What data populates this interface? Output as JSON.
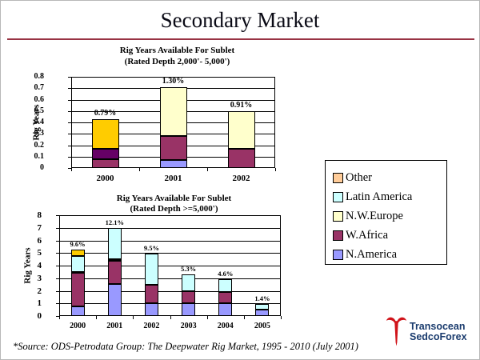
{
  "slide": {
    "title": "Secondary Market",
    "source_note": "*Source: ODS-Petrodata Group: The Deepwater Rig Market, 1995 - 2010 (July 2001)",
    "logo": {
      "line1": "Transocean",
      "line2": "SedcoForex"
    }
  },
  "colors": {
    "accent_rule": "#993344",
    "logo_red": "#D01319",
    "logo_navy": "#1B3C6E"
  },
  "legend": {
    "position": "right",
    "items": [
      {
        "label": "Other",
        "color": "#FFCC99"
      },
      {
        "label": "Latin America",
        "color": "#CCFFFF"
      },
      {
        "label": "N.W.Europe",
        "color": "#FFFFCC"
      },
      {
        "label": "W.Africa",
        "color": "#993366"
      },
      {
        "label": "N.America",
        "color": "#9999FF"
      }
    ]
  },
  "chart_data": [
    {
      "type": "bar",
      "stacked": true,
      "title": "Rig Years Available For Sublet",
      "subtitle": "(Rated Depth 2,000'- 5,000')",
      "ylabel": "Rig Years",
      "ylim": [
        0,
        0.8
      ],
      "ytick_step": 0.1,
      "yticks": [
        "0",
        "0.1",
        "0.2",
        "0.3",
        "0.4",
        "0.5",
        "0.6",
        "0.7",
        "0.8"
      ],
      "grid": true,
      "categories": [
        "2000",
        "2001",
        "2002"
      ],
      "bar_labels": [
        "0.79%",
        "1.30%",
        "0.91%"
      ],
      "series": [
        {
          "name": "N.America",
          "color": "#9999FF",
          "values": [
            0,
            0.07,
            0
          ]
        },
        {
          "name": "W.Africa",
          "color": "#993366",
          "values": [
            0.08,
            0.21,
            0.17
          ]
        },
        {
          "name": "Latin America",
          "color": "#660066",
          "values": [
            0.09,
            0,
            0
          ]
        },
        {
          "name": "N.W.Europe",
          "color": "#FFFFCC",
          "values": [
            0,
            0.43,
            0.33
          ]
        },
        {
          "name": "Other",
          "color": "#FFCC00",
          "values": [
            0.26,
            0,
            0
          ]
        }
      ]
    },
    {
      "type": "bar",
      "stacked": true,
      "title": "Rig Years Available For Sublet",
      "subtitle": "(Rated Depth >=5,000')",
      "ylabel": "Rig Years",
      "ylim": [
        0,
        8
      ],
      "ytick_step": 1,
      "yticks": [
        "0",
        "1",
        "2",
        "3",
        "4",
        "5",
        "6",
        "7",
        "8"
      ],
      "grid": true,
      "categories": [
        "2000",
        "2001",
        "2002",
        "2003",
        "2004",
        "2005"
      ],
      "bar_labels": [
        "9.6%",
        "12.1%",
        "9.5%",
        "5.3%",
        "4.6%",
        "1.4%"
      ],
      "series": [
        {
          "name": "N.America",
          "color": "#9999FF",
          "values": [
            0.75,
            2.55,
            1.0,
            1.0,
            1.0,
            0.5
          ]
        },
        {
          "name": "W.Africa",
          "color": "#993366",
          "values": [
            2.65,
            1.85,
            1.45,
            1.0,
            0.9,
            0
          ]
        },
        {
          "name": "N.W.Europe",
          "color": "#FFFFCC",
          "values": [
            0.1,
            0.1,
            0,
            0,
            0,
            0
          ]
        },
        {
          "name": "Latin America",
          "color": "#CCFFFF",
          "values": [
            1.25,
            2.5,
            2.5,
            1.3,
            1.05,
            0.45
          ]
        },
        {
          "name": "Other",
          "color": "#FFCC00",
          "values": [
            0.5,
            0,
            0,
            0,
            0,
            0
          ]
        }
      ]
    }
  ]
}
